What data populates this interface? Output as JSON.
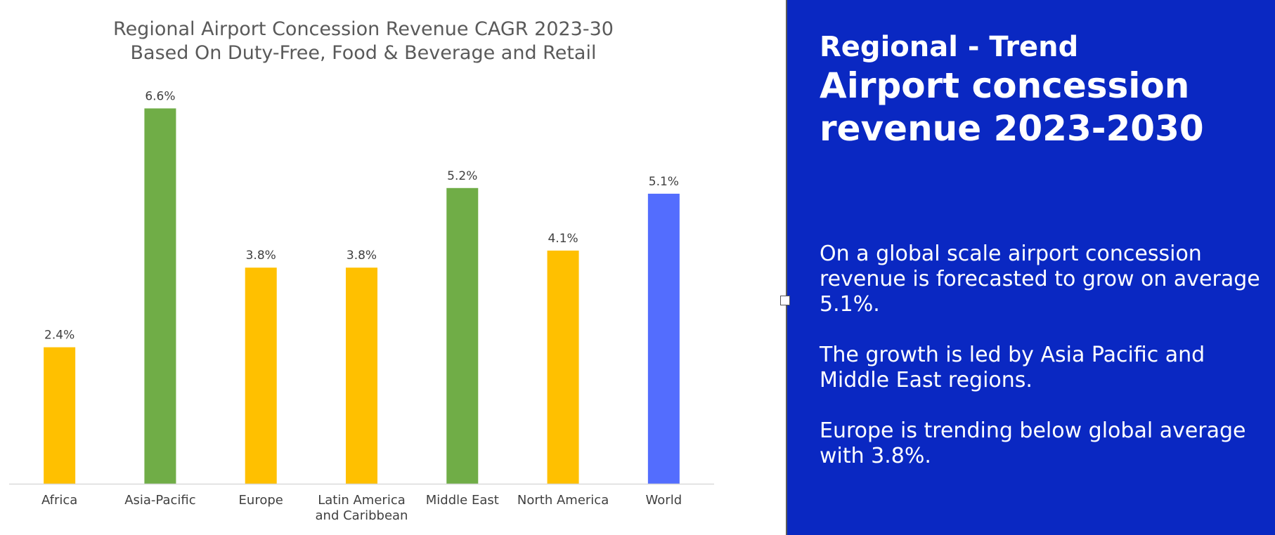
{
  "chart_data": {
    "type": "bar",
    "title": "Regional Airport Concession Revenue CAGR 2023-30",
    "subtitle": "Based On Duty-Free, Food & Beverage and Retail",
    "categories": [
      "Africa",
      "Asia-Pacific",
      "Europe",
      "Latin America and Caribbean",
      "Middle East",
      "North America",
      "World"
    ],
    "category_lines": [
      [
        "Africa"
      ],
      [
        "Asia-Pacific"
      ],
      [
        "Europe"
      ],
      [
        "Latin America",
        "and Caribbean"
      ],
      [
        "Middle East"
      ],
      [
        "North America"
      ],
      [
        "World"
      ]
    ],
    "values": [
      2.4,
      6.6,
      3.8,
      3.8,
      5.2,
      4.1,
      5.1
    ],
    "data_labels": [
      "2.4%",
      "6.6%",
      "3.8%",
      "3.8%",
      "5.2%",
      "4.1%",
      "5.1%"
    ],
    "colors": [
      "#ffc000",
      "#70ad47",
      "#ffc000",
      "#ffc000",
      "#70ad47",
      "#ffc000",
      "#536dfe"
    ],
    "ylim": [
      0,
      7
    ],
    "xlabel": "",
    "ylabel": "",
    "grid": false
  },
  "panel": {
    "subtitle": "Regional - Trend",
    "title": "Airport concession revenue 2023-2030",
    "paragraphs": [
      "On a global scale airport concession revenue is forecasted to grow on average 5.1%.",
      "The growth is led by Asia Pacific and Middle East regions.",
      "Europe is trending below global average with 3.8%."
    ]
  },
  "colors": {
    "panel_bg": "#0a28c2",
    "axis": "#d9d9d9",
    "label_text": "#404040"
  }
}
